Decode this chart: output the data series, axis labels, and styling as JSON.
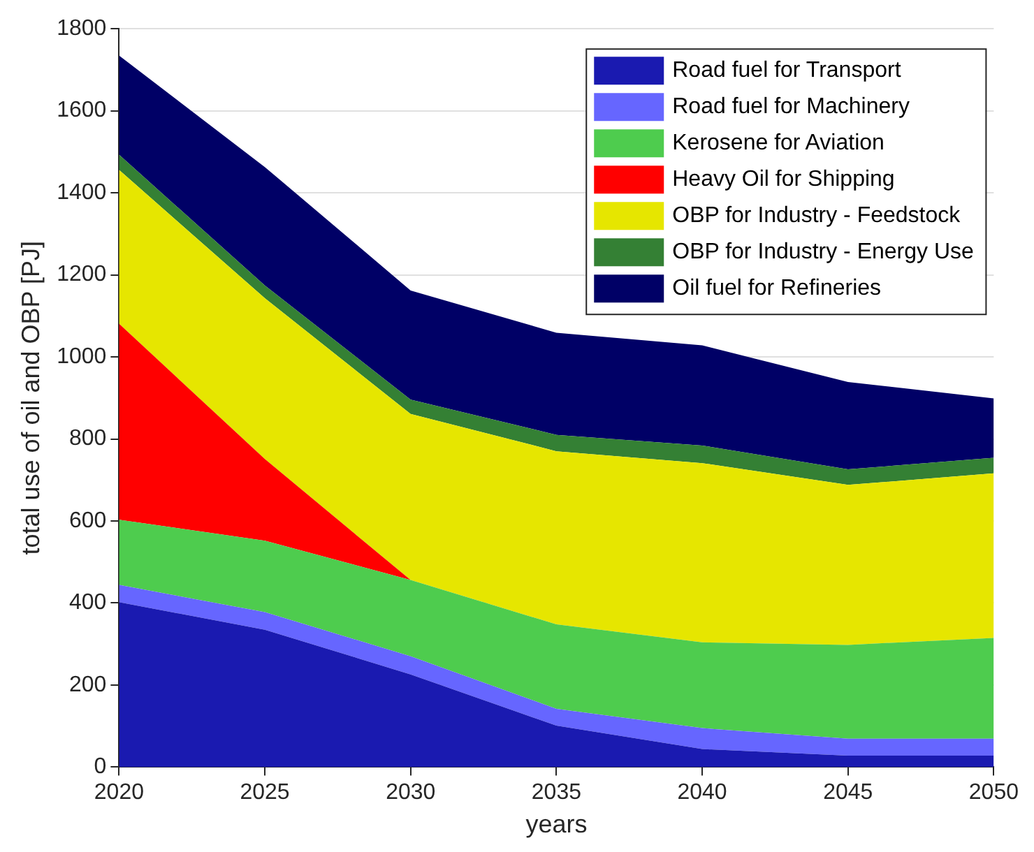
{
  "chart_data": {
    "type": "area",
    "stacked": true,
    "xlabel": "years",
    "ylabel": "total use of oil and OBP [PJ]",
    "x": [
      2020,
      2025,
      2030,
      2035,
      2040,
      2045,
      2050
    ],
    "xlim": [
      2020,
      2050
    ],
    "xticks": [
      2020,
      2025,
      2030,
      2035,
      2040,
      2045,
      2050
    ],
    "ylim": [
      0,
      1800
    ],
    "yticks": [
      0,
      200,
      400,
      600,
      800,
      1000,
      1200,
      1400,
      1600,
      1800
    ],
    "grid": "y",
    "legend": "top right",
    "series": [
      {
        "name": "Road fuel for Transport",
        "color": "#1a1ab0",
        "values": [
          402,
          335,
          226,
          101,
          44,
          28,
          28
        ]
      },
      {
        "name": "Road fuel for Machinery",
        "color": "#6666ff",
        "values": [
          42,
          43,
          44,
          41,
          51,
          41,
          41
        ]
      },
      {
        "name": "Kerosene for Aviation",
        "color": "#4ecc4e",
        "values": [
          159,
          174,
          186,
          206,
          209,
          229,
          246
        ]
      },
      {
        "name": "Heavy Oil for Shipping",
        "color": "#ff0000",
        "values": [
          478,
          199,
          0,
          0,
          0,
          0,
          0
        ]
      },
      {
        "name": "OBP for Industry - Feedstock",
        "color": "#e6e600",
        "values": [
          375,
          392,
          405,
          422,
          437,
          390,
          401
        ]
      },
      {
        "name": "OBP for Industry - Energy Use",
        "color": "#348034",
        "values": [
          37,
          31,
          35,
          40,
          43,
          38,
          38
        ]
      },
      {
        "name": "Oil fuel for Refineries",
        "color": "#000066",
        "values": [
          242,
          289,
          266,
          249,
          244,
          213,
          145
        ]
      }
    ]
  }
}
